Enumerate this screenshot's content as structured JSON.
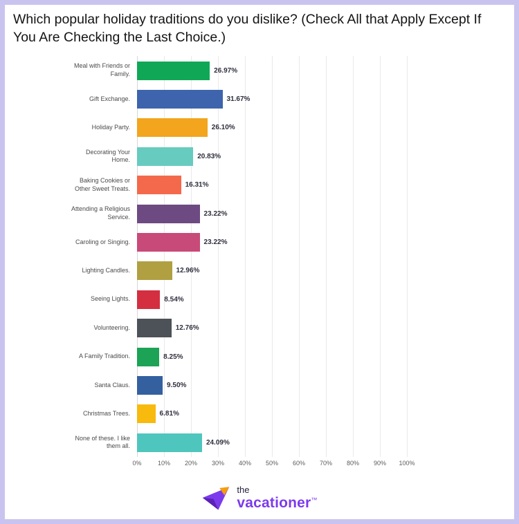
{
  "page": {
    "title": "Which popular holiday traditions do you dislike? (Check All that Apply Except If You Are Checking the Last Choice.)"
  },
  "chart_data": {
    "type": "bar",
    "orientation": "horizontal",
    "title": "Which popular holiday traditions do you dislike? (Check All that Apply Except If You Are Checking the Last Choice.)",
    "categories": [
      "Meal with Friends or Family.",
      "Gift Exchange.",
      "Holiday Party.",
      "Decorating Your Home.",
      "Baking Cookies or Other Sweet Treats.",
      "Attending a Religious Service.",
      "Caroling or Singing.",
      "Lighting Candles.",
      "Seeing Lights.",
      "Volunteering.",
      "A Family Tradition.",
      "Santa Claus.",
      "Christmas Trees.",
      "None of these. I like them all."
    ],
    "values": [
      26.97,
      31.67,
      26.1,
      20.83,
      16.31,
      23.22,
      23.22,
      12.96,
      8.54,
      12.76,
      8.25,
      9.5,
      6.81,
      24.09
    ],
    "value_labels": [
      "26.97%",
      "31.67%",
      "26.10%",
      "20.83%",
      "16.31%",
      "23.22%",
      "23.22%",
      "12.96%",
      "8.54%",
      "12.76%",
      "8.25%",
      "9.50%",
      "6.81%",
      "24.09%"
    ],
    "bar_colors": [
      "#10a857",
      "#3d64ad",
      "#f2a51d",
      "#67cbc0",
      "#f4694b",
      "#6d4b82",
      "#c84a78",
      "#b0a042",
      "#d42f40",
      "#4c5257",
      "#1ca355",
      "#34609f",
      "#f7ba0d",
      "#4fc6bd"
    ],
    "xlim": [
      0,
      100
    ],
    "x_ticks": [
      "0%",
      "10%",
      "20%",
      "30%",
      "40%",
      "50%",
      "60%",
      "70%",
      "80%",
      "90%",
      "100%"
    ],
    "grid": true,
    "legend": false
  },
  "footer": {
    "logo_the": "the",
    "logo_main": "vacationer",
    "logo_tm": "™"
  },
  "colors": {
    "frame_border": "#c9c3ef",
    "gridline": "#e9e9e9",
    "logo_purple": "#7c3aed",
    "logo_orange": "#f59e0b",
    "logo_dark": "#27203f"
  }
}
